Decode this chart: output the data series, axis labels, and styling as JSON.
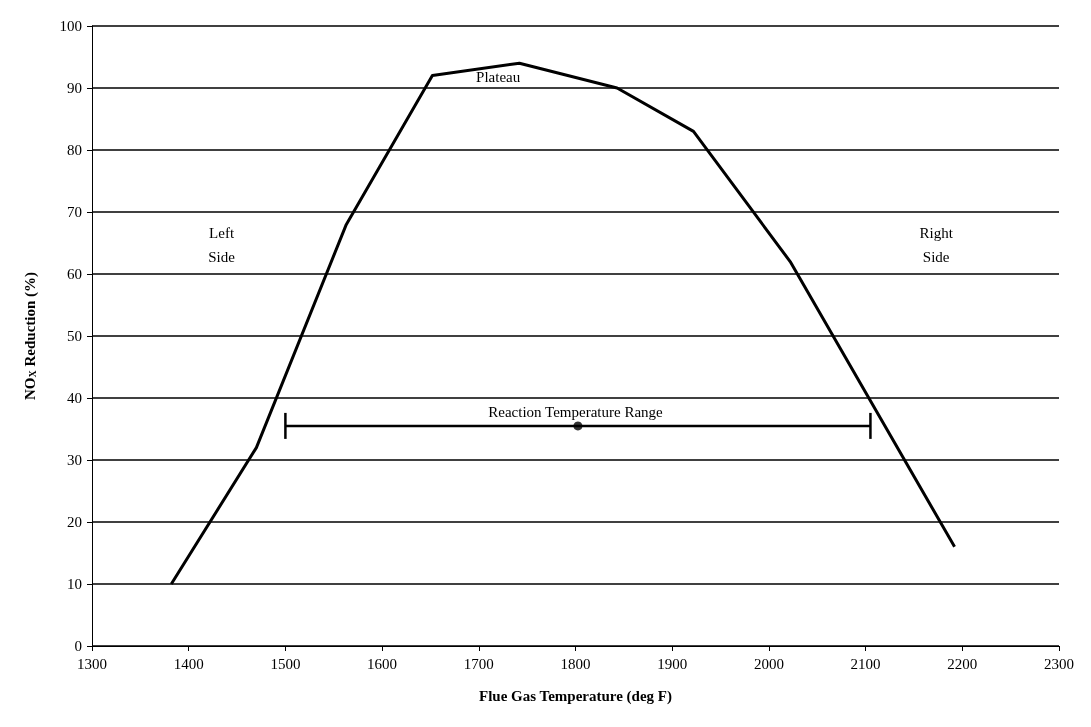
{
  "chart_data": {
    "type": "line",
    "xlabel": "Flue Gas Temperature (deg F)",
    "ylabel": "NO$_{X}$ Reduction (%)",
    "x": [
      1382,
      1470,
      1563,
      1652,
      1742,
      1843,
      1922,
      2022,
      2192
    ],
    "series": [
      {
        "color": "#000000",
        "values": [
          10,
          32,
          68,
          92,
          94,
          90,
          83,
          62,
          16
        ]
      },
      {
        "type": "scatter",
        "color": "#000000",
        "x": [
          1802.5
        ],
        "values": [
          35.5
        ],
        "xerrors": [
          [
            1500,
            2105
          ]
        ],
        "marker": "circle"
      }
    ],
    "xlim": [
      1300,
      2300
    ],
    "xticks": [
      1300,
      1400,
      1500,
      1600,
      1700,
      1800,
      1900,
      2000,
      2100,
      2200,
      2300
    ],
    "ylim": [
      0,
      100
    ],
    "yticks": [
      0,
      10,
      20,
      30,
      40,
      50,
      60,
      70,
      80,
      90,
      100
    ],
    "grid": "y",
    "marker": "none",
    "line_style": "solid",
    "annotations": [
      "Reaction Temperature Range",
      "Plateau",
      "Left\nSide",
      "Right\nSide"
    ]
  }
}
